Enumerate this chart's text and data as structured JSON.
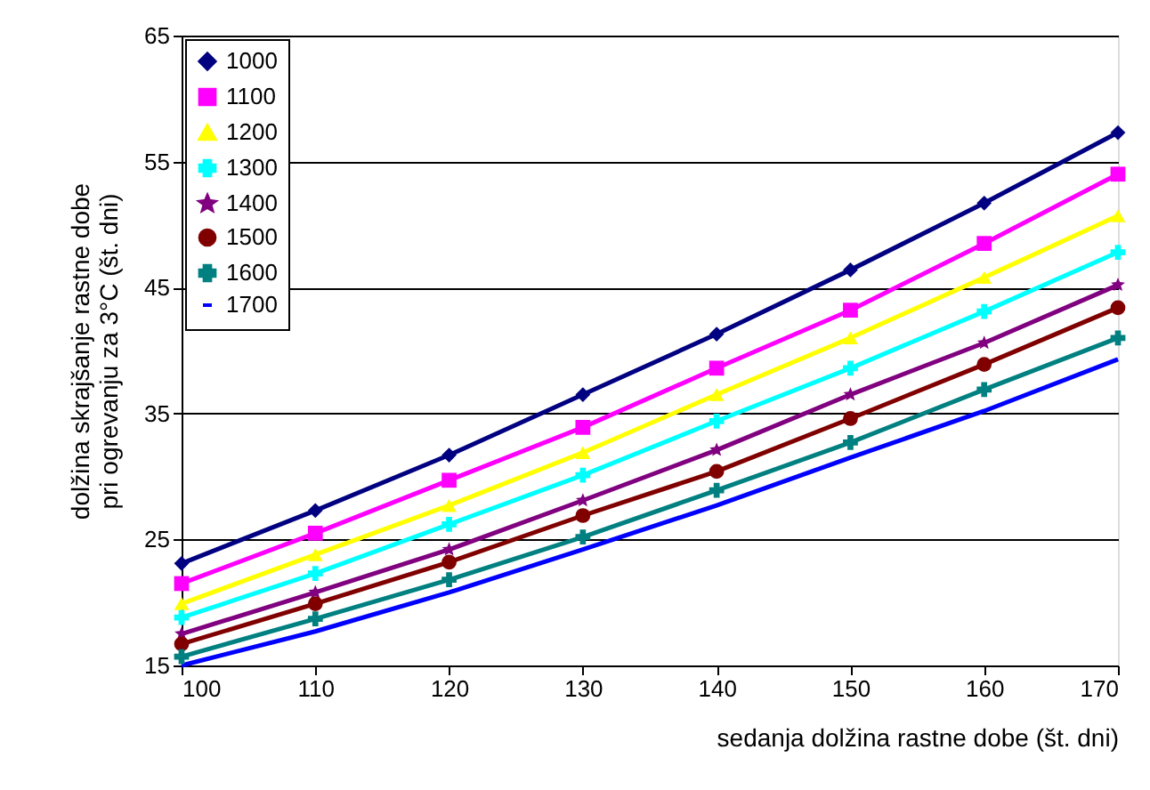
{
  "chart_data": {
    "type": "line",
    "xlabel": "sedanja dolžina rastne dobe (št. dni)",
    "ylabel": "dolžina skrajšanje rastne dobe\npri ogrevanju za 3°C (št. dni)",
    "x": [
      100,
      110,
      120,
      130,
      140,
      150,
      160,
      170
    ],
    "xlim": [
      100,
      170
    ],
    "xticks": [
      100,
      110,
      120,
      130,
      140,
      150,
      160,
      170
    ],
    "ylim": [
      15,
      65
    ],
    "yticks": [
      15,
      25,
      35,
      45,
      55,
      65
    ],
    "grid": "y",
    "legend": "top left",
    "line_style": "solid",
    "series": [
      {
        "name": "1000",
        "color": "#000080",
        "marker": "diamond",
        "values": [
          23.1,
          27.3,
          31.7,
          36.5,
          41.3,
          46.4,
          51.7,
          57.3
        ]
      },
      {
        "name": "1100",
        "color": "#ff00ff",
        "marker": "square",
        "values": [
          21.5,
          25.5,
          29.7,
          33.9,
          38.6,
          43.2,
          48.5,
          54.0
        ]
      },
      {
        "name": "1200",
        "color": "#ffff00",
        "marker": "triangle",
        "values": [
          19.9,
          23.8,
          27.7,
          31.9,
          36.5,
          41.0,
          45.8,
          50.7
        ]
      },
      {
        "name": "1300",
        "color": "#00ffff",
        "marker": "cross",
        "values": [
          18.8,
          22.3,
          26.2,
          30.1,
          34.4,
          38.6,
          43.1,
          47.8
        ]
      },
      {
        "name": "1400",
        "color": "#800080",
        "marker": "star",
        "values": [
          17.5,
          20.8,
          24.2,
          28.1,
          32.1,
          36.5,
          40.6,
          45.2
        ]
      },
      {
        "name": "1500",
        "color": "#800000",
        "marker": "circle",
        "values": [
          16.7,
          19.9,
          23.2,
          26.9,
          30.4,
          34.6,
          38.9,
          43.4
        ]
      },
      {
        "name": "1600",
        "color": "#008080",
        "marker": "cross",
        "values": [
          15.7,
          18.7,
          21.8,
          25.2,
          28.9,
          32.7,
          36.9,
          41.0
        ]
      },
      {
        "name": "1700",
        "color": "#0000ff",
        "marker": "none",
        "values": [
          15.0,
          17.7,
          20.8,
          24.2,
          27.7,
          31.5,
          35.2,
          39.3
        ]
      }
    ]
  }
}
